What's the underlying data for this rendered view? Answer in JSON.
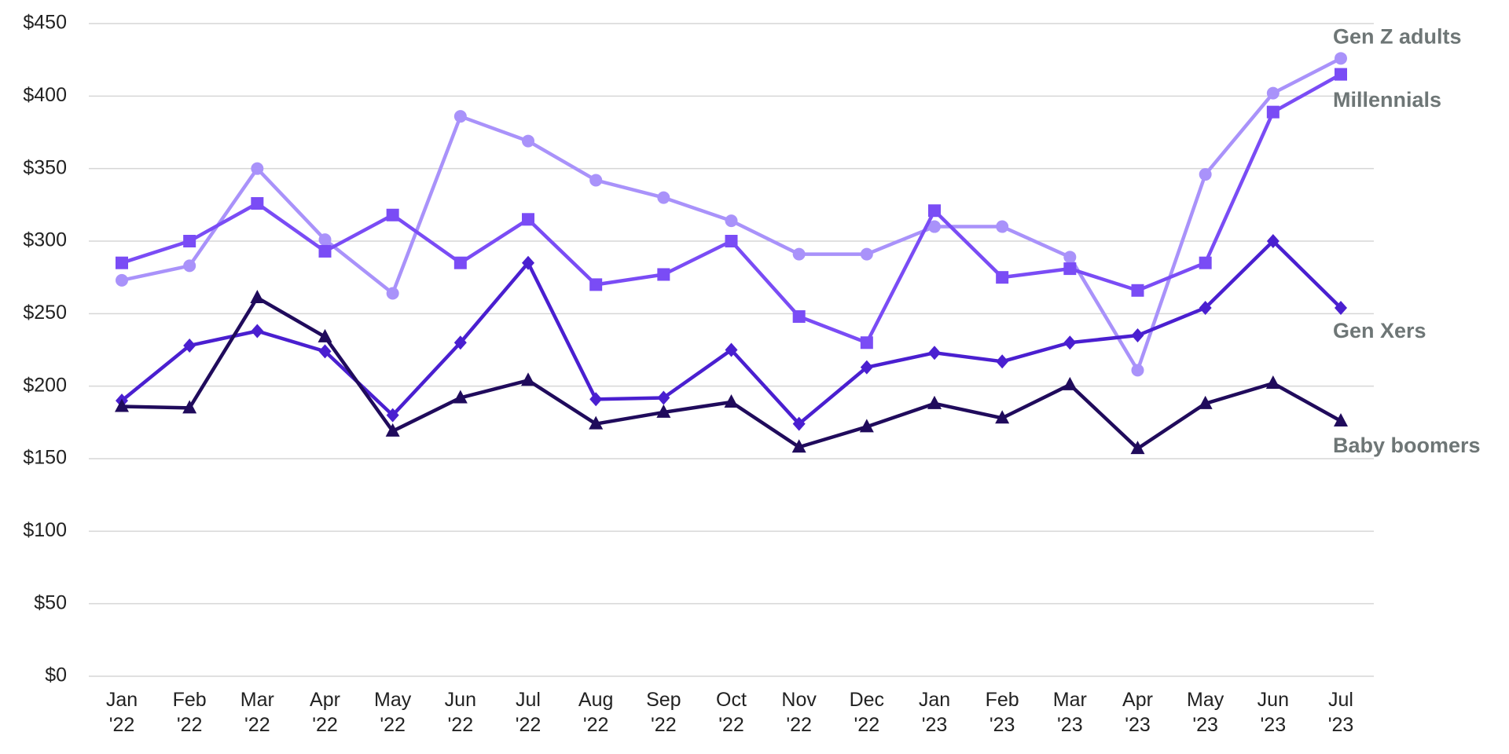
{
  "chart_data": {
    "type": "line",
    "categories": [
      "Jan '22",
      "Feb '22",
      "Mar '22",
      "Apr '22",
      "May '22",
      "Jun '22",
      "Jul '22",
      "Aug '22",
      "Sep '22",
      "Oct '22",
      "Nov '22",
      "Dec '22",
      "Jan '23",
      "Feb '23",
      "Mar '23",
      "Apr '23",
      "May '23",
      "Jun '23",
      "Jul '23"
    ],
    "series": [
      {
        "name": "Gen Z adults",
        "color": "#a992fa",
        "marker": "circle",
        "values": [
          273,
          283,
          350,
          301,
          264,
          386,
          369,
          342,
          330,
          314,
          291,
          291,
          310,
          310,
          289,
          211,
          346,
          402,
          426
        ]
      },
      {
        "name": "Millennials",
        "color": "#7a4cf5",
        "marker": "square",
        "values": [
          285,
          300,
          326,
          293,
          318,
          285,
          315,
          270,
          277,
          300,
          248,
          230,
          321,
          275,
          281,
          266,
          285,
          389,
          415
        ]
      },
      {
        "name": "Gen Xers",
        "color": "#4a1fd0",
        "marker": "diamond",
        "values": [
          190,
          228,
          238,
          224,
          180,
          230,
          285,
          191,
          192,
          225,
          174,
          213,
          223,
          217,
          230,
          235,
          254,
          300,
          254
        ]
      },
      {
        "name": "Baby boomers",
        "color": "#200b5c",
        "marker": "triangle",
        "values": [
          186,
          185,
          261,
          234,
          169,
          192,
          204,
          174,
          182,
          189,
          158,
          172,
          188,
          178,
          201,
          157,
          188,
          202,
          176
        ]
      }
    ],
    "ylim": [
      0,
      450
    ],
    "yticks": [
      {
        "value": 0,
        "label": "$0"
      },
      {
        "value": 50,
        "label": "$50"
      },
      {
        "value": 100,
        "label": "$100"
      },
      {
        "value": 150,
        "label": "$150"
      },
      {
        "value": 200,
        "label": "$200"
      },
      {
        "value": 250,
        "label": "$250"
      },
      {
        "value": 300,
        "label": "$300"
      },
      {
        "value": 350,
        "label": "$350"
      },
      {
        "value": 400,
        "label": "$400"
      },
      {
        "value": 450,
        "label": "$450"
      }
    ],
    "grid": true
  }
}
